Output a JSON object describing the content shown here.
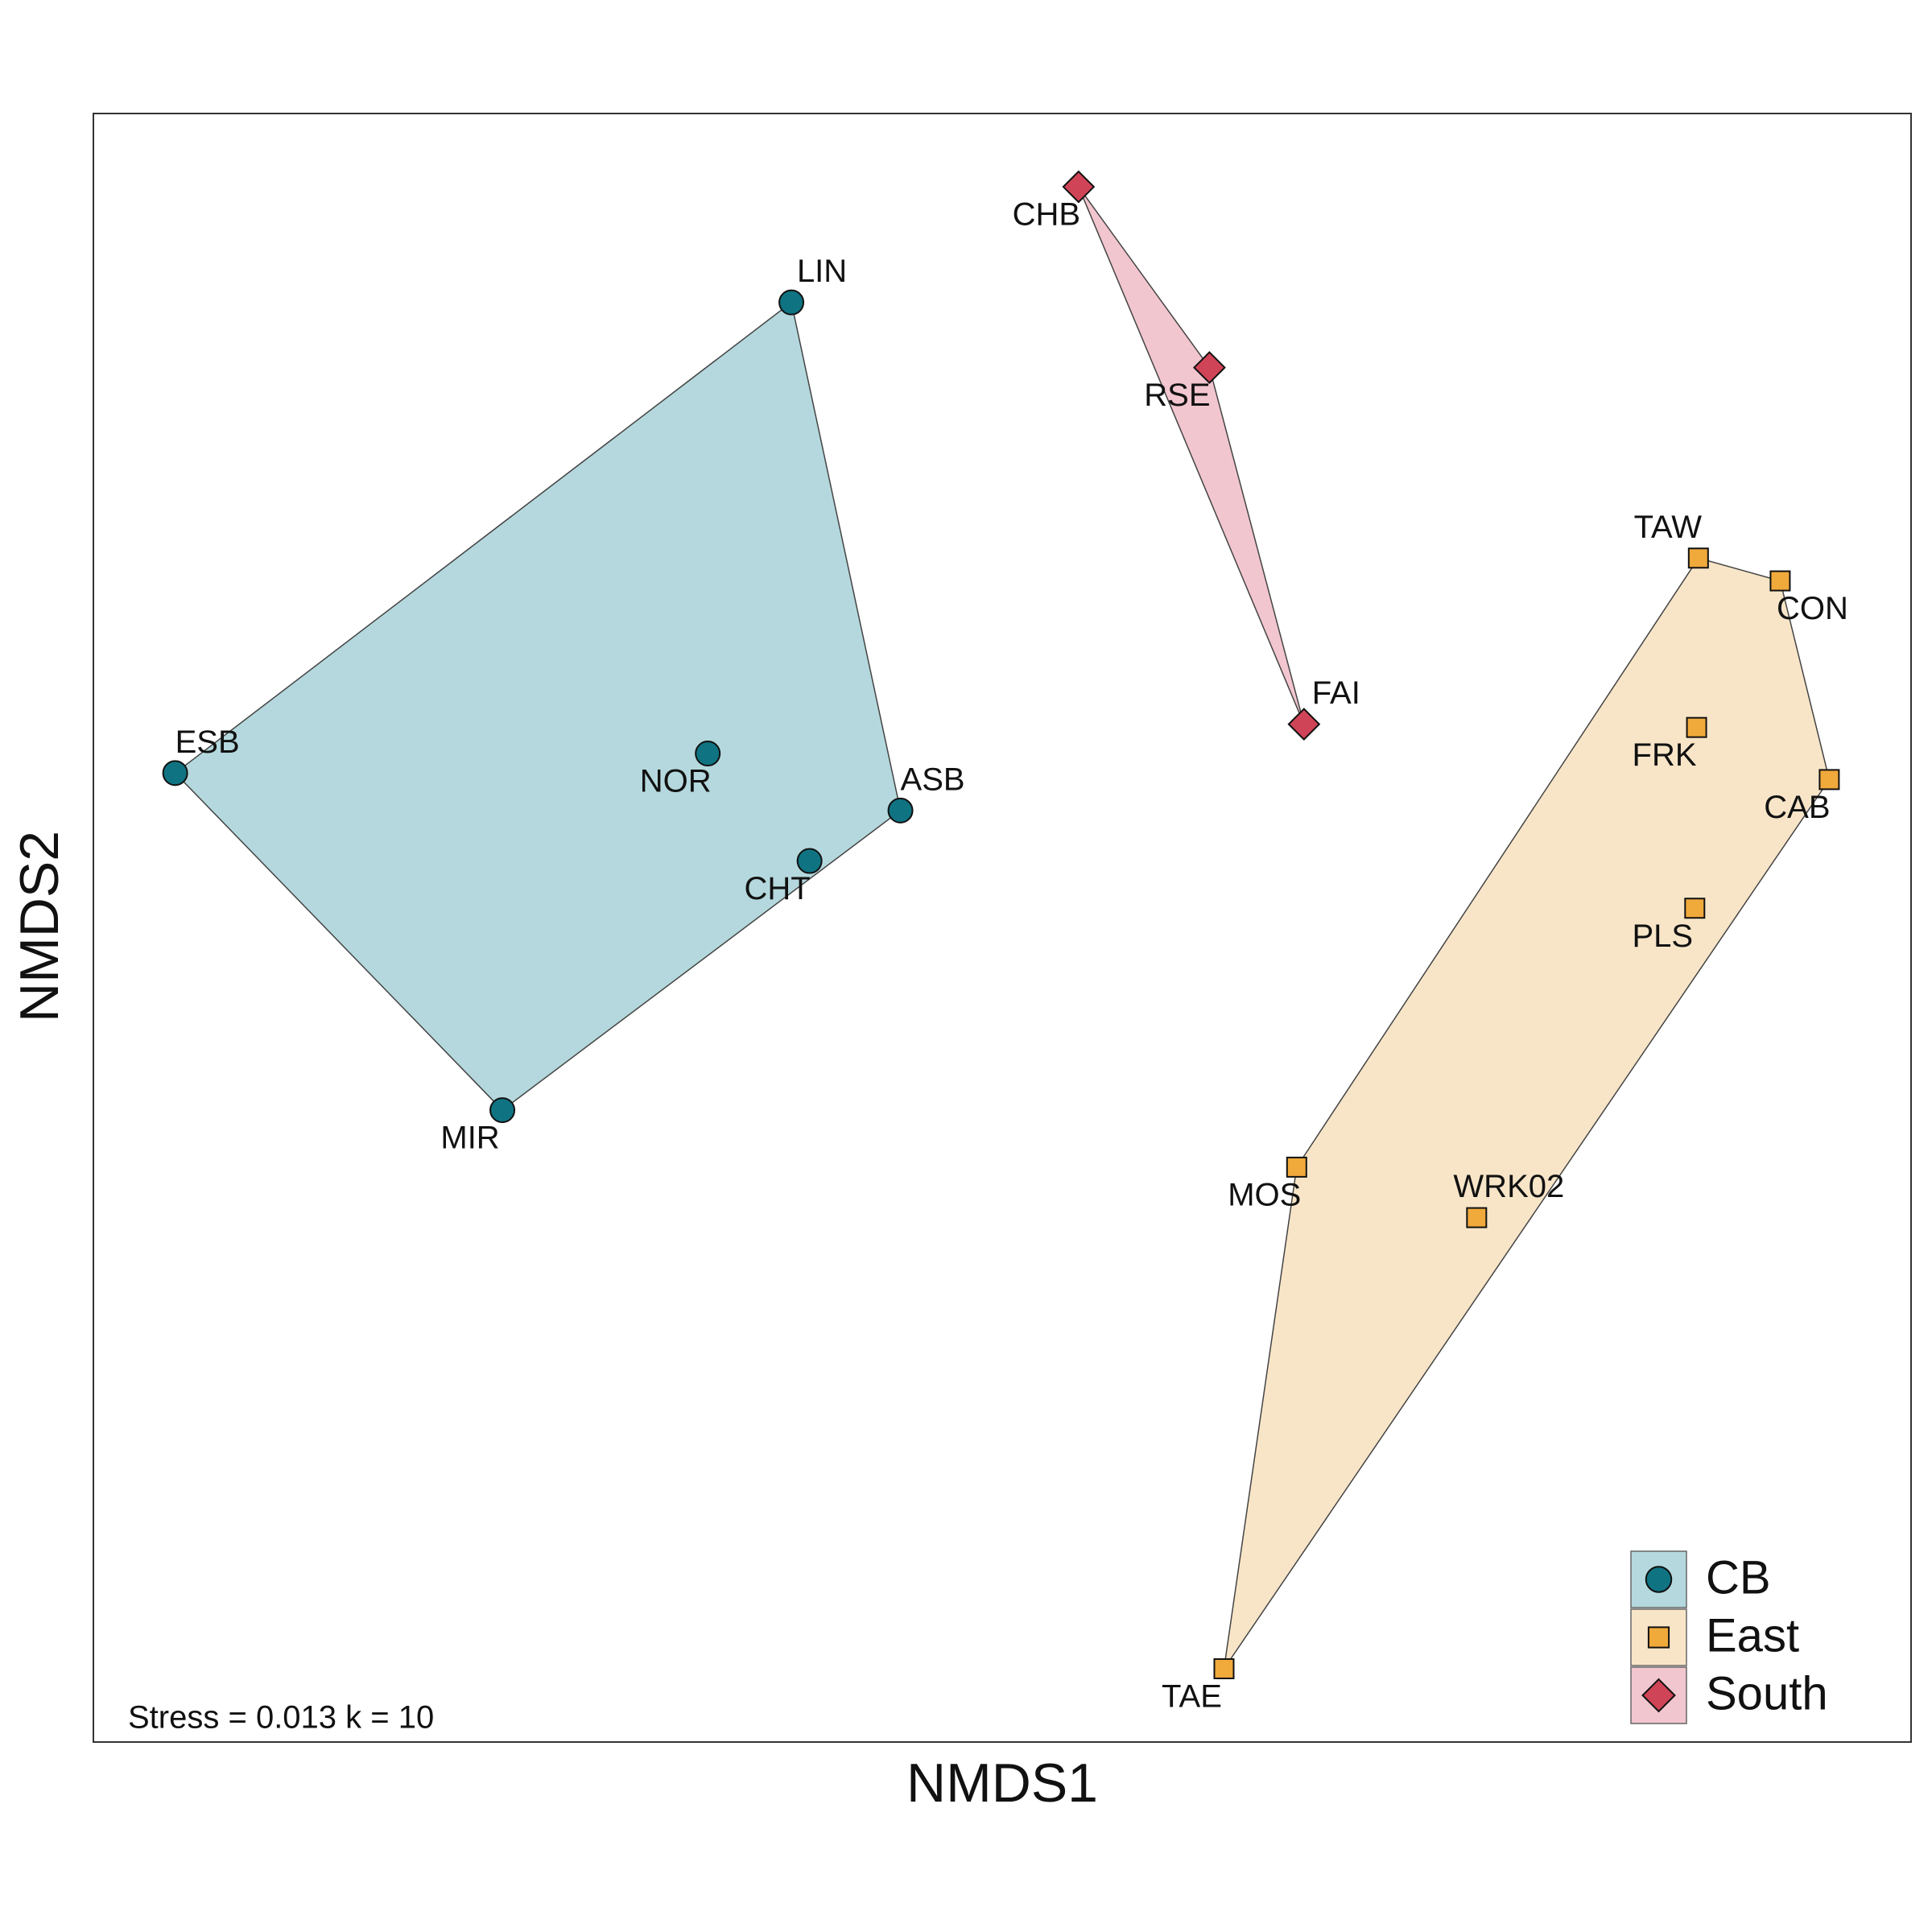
{
  "chart_data": {
    "type": "scatter",
    "x_label": "NMDS1",
    "y_label": "NMDS2",
    "annotation": "Stress = 0.013 k = 10",
    "xlim": [
      -0.5,
      0.5
    ],
    "ylim": [
      -0.5,
      0.5
    ],
    "grid": false,
    "legend": "bottom-right",
    "series": [
      {
        "name": "CB",
        "color": "#0f7382",
        "hull_color": "#b4d8dd",
        "marker": "circle",
        "labels": [
          "LIN",
          "ESB",
          "NOR",
          "ASB",
          "CHT",
          "MIR"
        ],
        "x": [
          -0.116,
          -0.455,
          -0.162,
          -0.056,
          -0.106,
          -0.275
        ],
        "y": [
          0.384,
          0.095,
          0.107,
          0.072,
          0.041,
          -0.112
        ]
      },
      {
        "name": "East",
        "color": "#f0a93b",
        "hull_color": "#f8e5c8",
        "marker": "square",
        "labels": [
          "TAW",
          "CON",
          "FRK",
          "CAB",
          "PLS",
          "MOS",
          "WRK02",
          "TAE"
        ],
        "x": [
          0.383,
          0.428,
          0.382,
          0.455,
          0.381,
          0.162,
          0.261,
          0.122
        ],
        "y": [
          0.227,
          0.213,
          0.123,
          0.091,
          0.012,
          -0.147,
          -0.178,
          -0.455
        ]
      },
      {
        "name": "South",
        "color": "#d04458",
        "hull_color": "#f2c6cf",
        "marker": "diamond",
        "labels": [
          "CHB",
          "RSE",
          "FAI"
        ],
        "x": [
          0.042,
          0.114,
          0.166
        ],
        "y": [
          0.455,
          0.344,
          0.125
        ]
      }
    ]
  }
}
